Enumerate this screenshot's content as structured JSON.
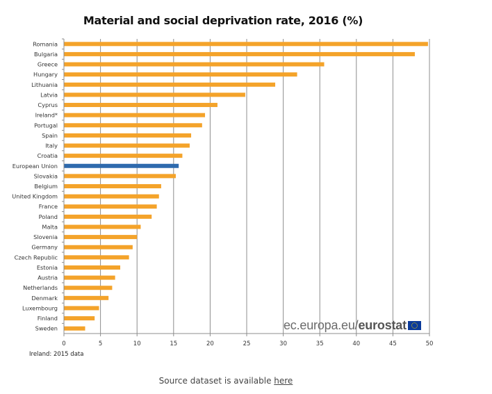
{
  "chart_data": {
    "type": "bar",
    "orientation": "horizontal",
    "title": "Material and social deprivation rate, 2016 (%)",
    "xlabel": "",
    "ylabel": "",
    "xlim": [
      0,
      50
    ],
    "xticks": [
      0,
      5,
      10,
      15,
      20,
      25,
      30,
      35,
      40,
      45,
      50
    ],
    "grid": true,
    "categories": [
      "Romania",
      "Bulgaria",
      "Greece",
      "Hungary",
      "Lithuania",
      "Latvia",
      "Cyprus",
      "Ireland*",
      "Portugal",
      "Spain",
      "Italy",
      "Croatia",
      "European Union",
      "Slovakia",
      "Belgium",
      "United Kingdom",
      "France",
      "Poland",
      "Malta",
      "Slovenia",
      "Germany",
      "Czech Republic",
      "Estonia",
      "Austria",
      "Netherlands",
      "Denmark",
      "Luxembourg",
      "Finland",
      "Sweden"
    ],
    "values": [
      49.8,
      48.0,
      35.6,
      31.9,
      28.9,
      24.8,
      21.0,
      19.3,
      18.9,
      17.4,
      17.2,
      16.2,
      15.7,
      15.3,
      13.3,
      13.0,
      12.7,
      12.0,
      10.5,
      10.0,
      9.4,
      8.9,
      7.7,
      7.0,
      6.6,
      6.1,
      4.8,
      4.2,
      2.9
    ],
    "highlight": "European Union",
    "colors": {
      "default": "#f4a32a",
      "highlight": "#2e6aad",
      "grid": "#8c8c8c"
    },
    "note": "Ireland: 2015 data"
  },
  "logo": {
    "text_light": "ec.europa.eu/",
    "text_bold": "eurostat"
  },
  "footer": {
    "text": "Source dataset is available ",
    "link": "here"
  }
}
